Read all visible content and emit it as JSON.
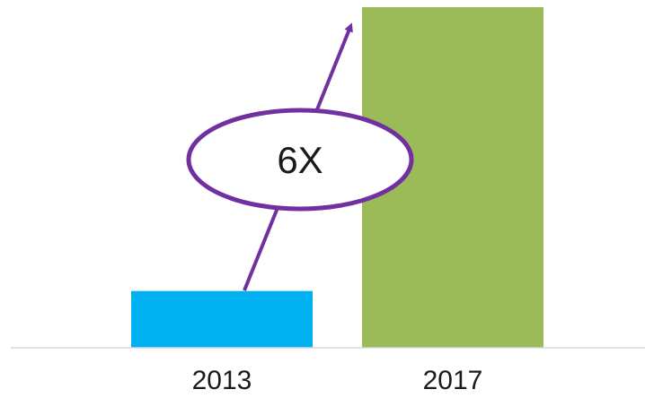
{
  "chart_data": {
    "type": "bar",
    "categories": [
      "2013",
      "2017"
    ],
    "values": [
      1,
      6
    ],
    "colors": [
      "#00b0f0",
      "#9bbb59"
    ],
    "ylim": [
      0,
      6
    ],
    "grid": false,
    "legend": "none",
    "annotation": {
      "text": "6X",
      "style": "ellipse-callout-with-arrow",
      "color": "#7030a0"
    }
  }
}
